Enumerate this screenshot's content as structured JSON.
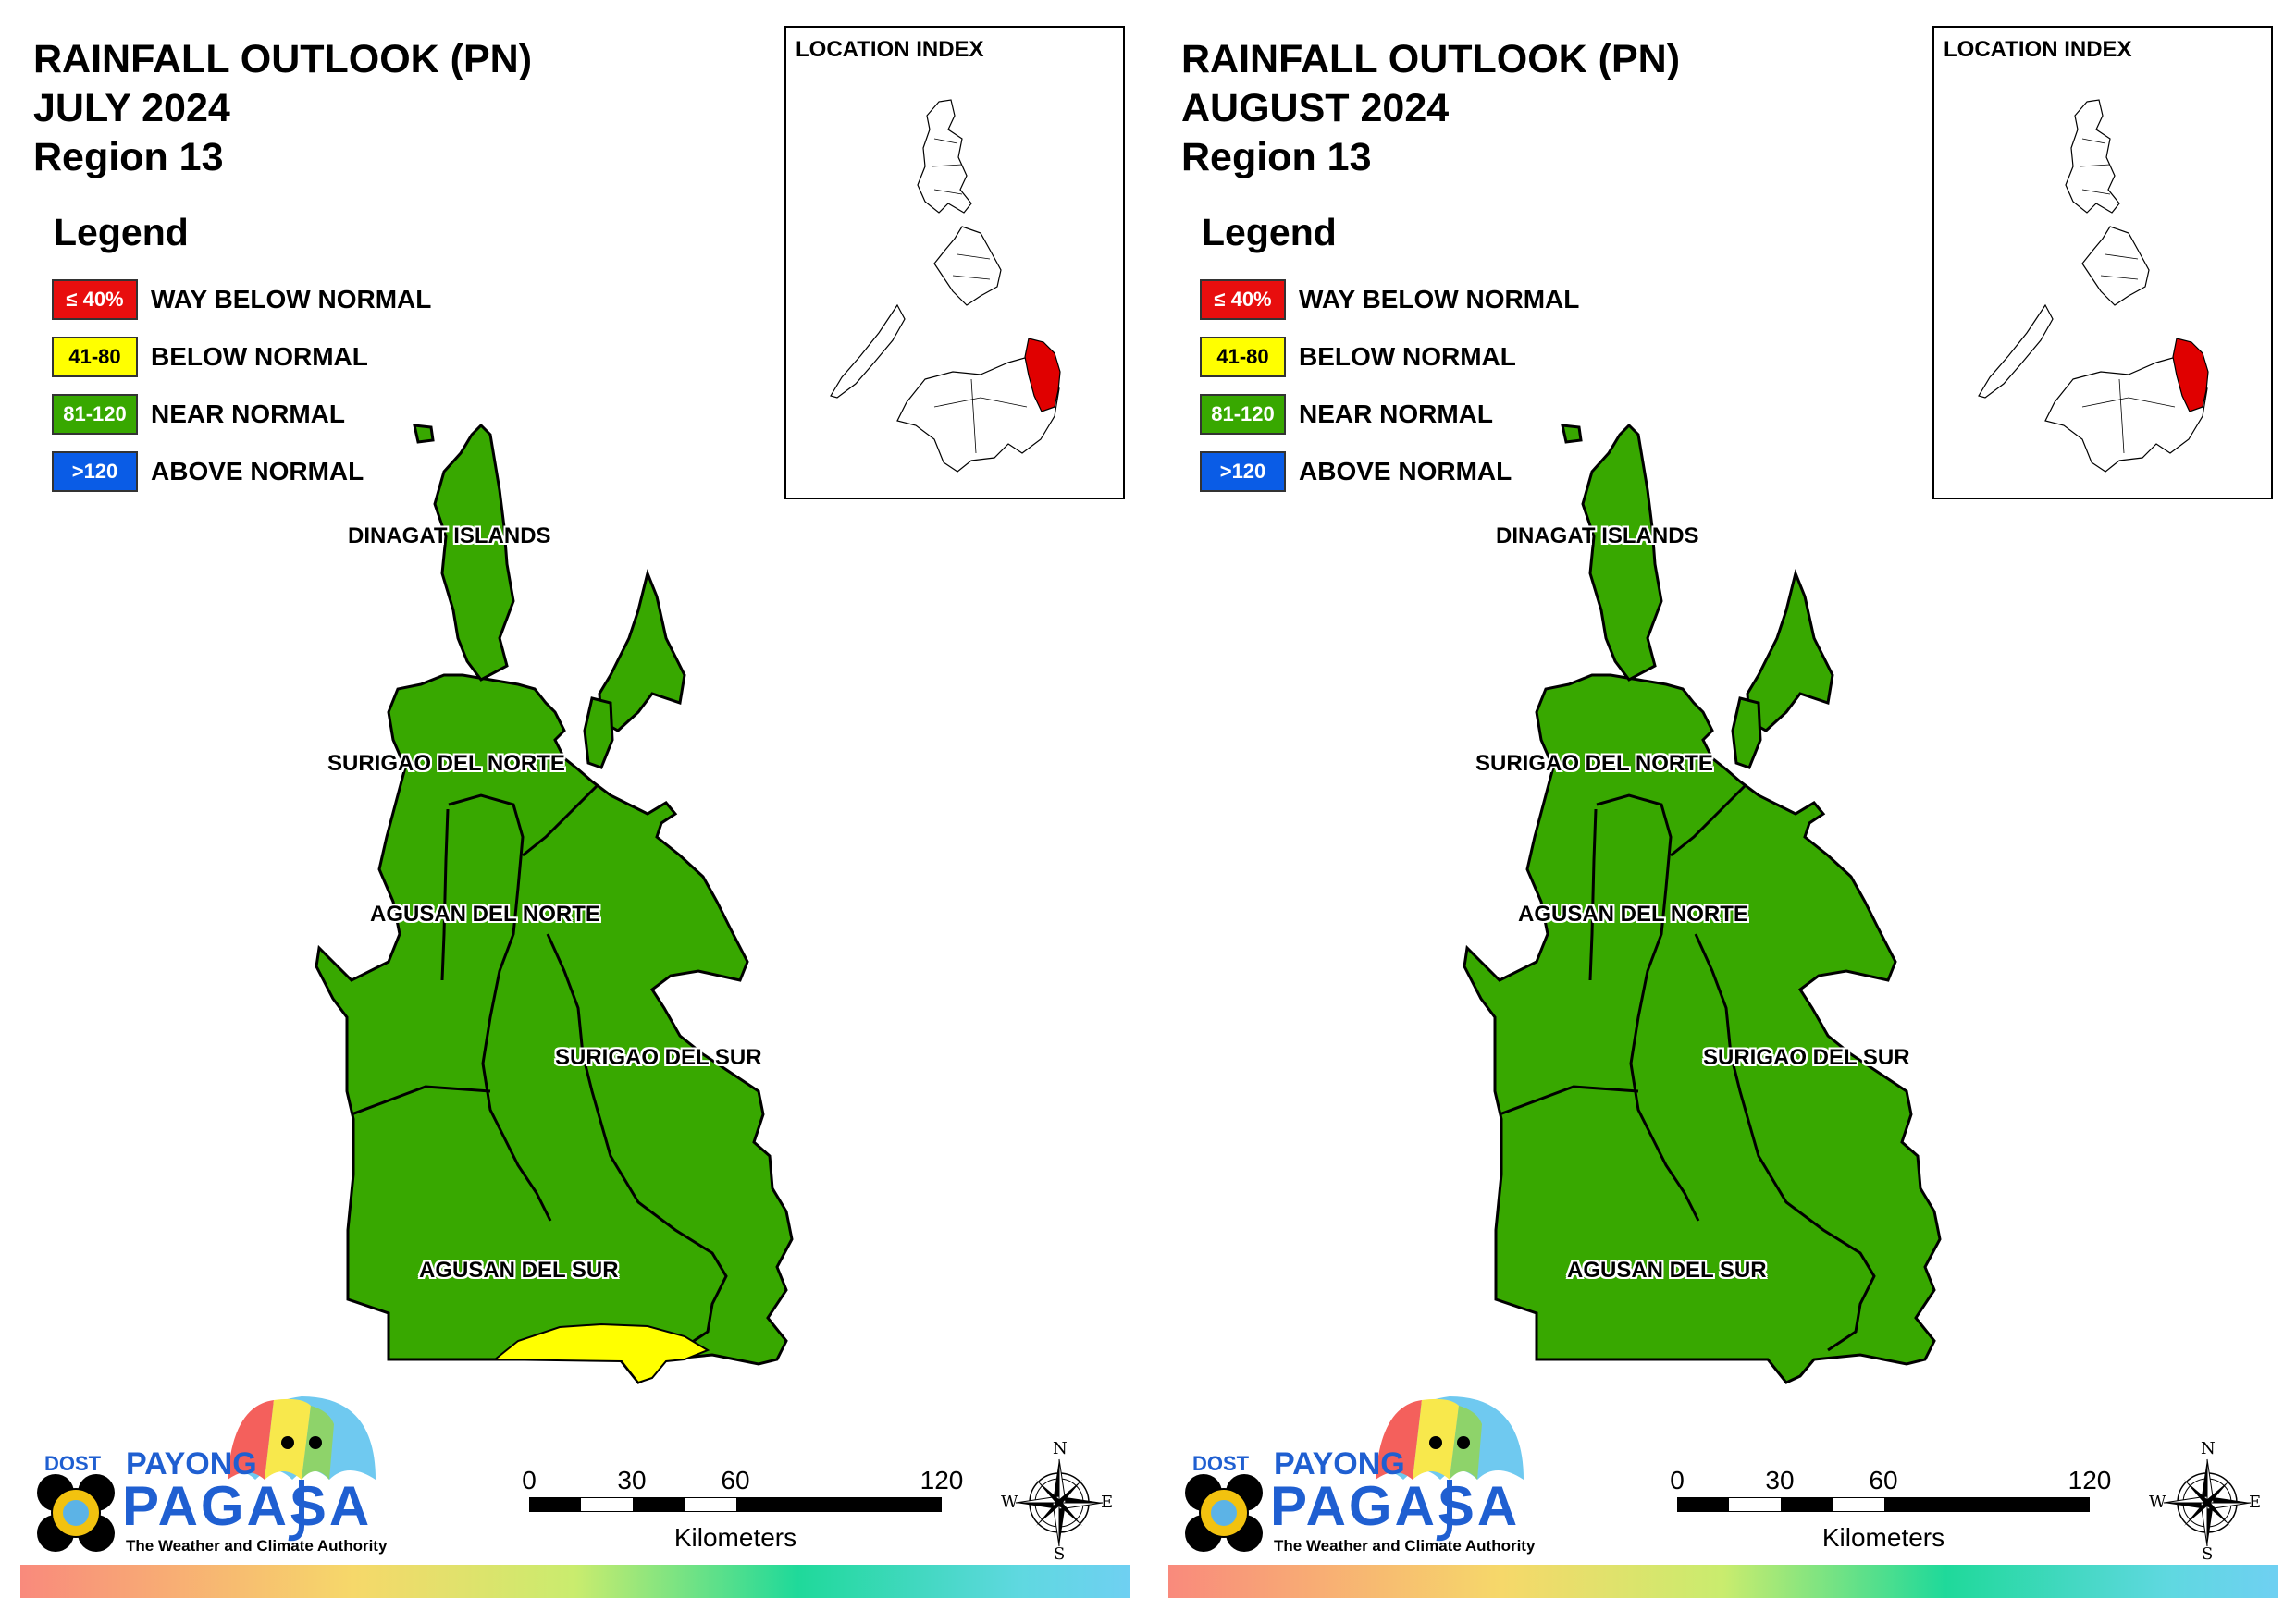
{
  "legend": {
    "heading": "Legend",
    "items": [
      {
        "range": "≤ 40%",
        "label": "WAY BELOW NORMAL",
        "color": "#e80e0e",
        "text_color": "#ffffff"
      },
      {
        "range": "41-80",
        "label": "BELOW NORMAL",
        "color": "#ffff00",
        "text_color": "#000000"
      },
      {
        "range": "81-120",
        "label": "NEAR NORMAL",
        "color": "#38a800",
        "text_color": "#ffffff"
      },
      {
        "range": ">120",
        "label": "ABOVE NORMAL",
        "color": "#0a5ce6",
        "text_color": "#ffffff"
      }
    ]
  },
  "inset": {
    "title": "LOCATION INDEX",
    "highlight_color": "#e00000"
  },
  "provinces": [
    "DINAGAT ISLANDS",
    "SURIGAO DEL NORTE",
    "AGUSAN DEL NORTE",
    "SURIGAO DEL SUR",
    "AGUSAN DEL SUR"
  ],
  "scale": {
    "ticks": [
      "0",
      "30",
      "60",
      "120"
    ],
    "unit": "Kilometers"
  },
  "compass": {
    "n": "N",
    "e": "E",
    "s": "S",
    "w": "W"
  },
  "logo": {
    "dost": "DOST",
    "payong": "PAYONG",
    "pagasa": "PAGASA",
    "tagline": "The Weather and Climate Authority"
  },
  "panels": [
    {
      "title": [
        "RAINFALL OUTLOOK (PN)",
        "JULY 2024",
        "Region 13"
      ],
      "has_below_normal_patch": true
    },
    {
      "title": [
        "RAINFALL OUTLOOK (PN)",
        "AUGUST 2024",
        "Region 13"
      ],
      "has_below_normal_patch": false
    }
  ],
  "map_colors": {
    "near_normal": "#38a800",
    "below_normal": "#ffff00",
    "outline": "#000000"
  }
}
